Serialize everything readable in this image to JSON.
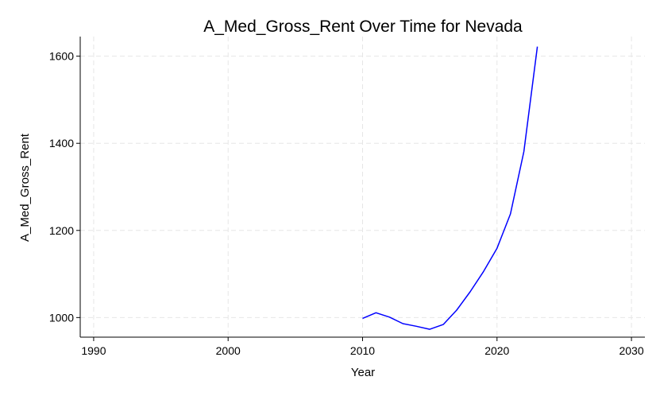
{
  "chart_data": {
    "type": "line",
    "title": "A_Med_Gross_Rent Over Time for Nevada",
    "xlabel": "Year",
    "ylabel": "A_Med_Gross_Rent",
    "xlim": [
      1989,
      2031
    ],
    "ylim": [
      955,
      1645
    ],
    "x_ticks": [
      1990,
      2000,
      2010,
      2020,
      2030
    ],
    "y_ticks": [
      1000,
      1200,
      1400,
      1600
    ],
    "grid": true,
    "series": [
      {
        "color": "#0000ff",
        "x": [
          2010,
          2011,
          2012,
          2013,
          2014,
          2015,
          2016,
          2017,
          2018,
          2019,
          2020,
          2021,
          2022,
          2023
        ],
        "y": [
          998,
          1011,
          1001,
          986,
          980,
          973,
          984,
          1017,
          1059,
          1106,
          1159,
          1238,
          1381,
          1622
        ]
      }
    ]
  }
}
